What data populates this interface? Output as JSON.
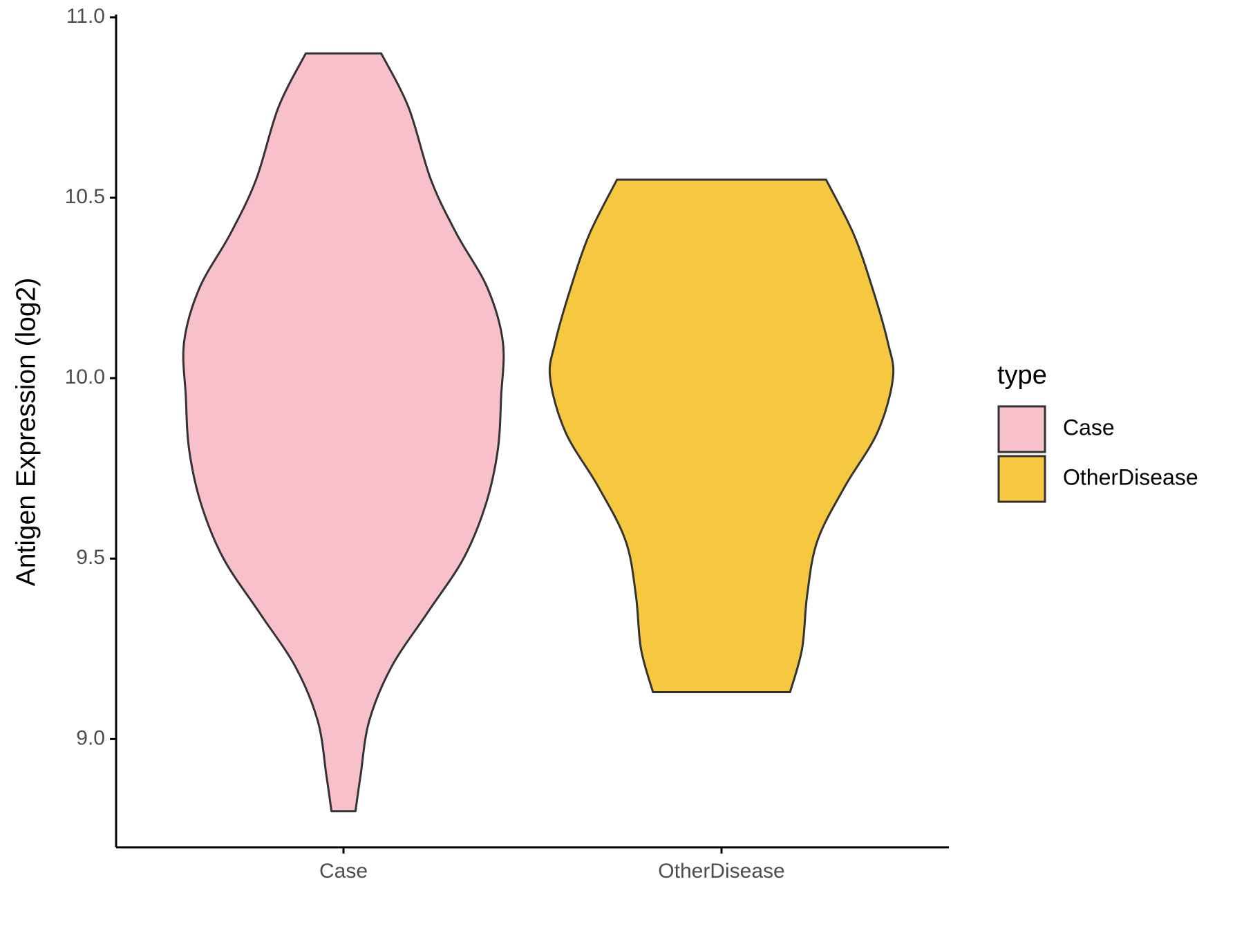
{
  "chart_data": {
    "type": "violin",
    "ylabel": "Antigen Expression (log2)",
    "categories": [
      "Case",
      "OtherDisease"
    ],
    "legend_title": "type",
    "legend": "right",
    "ylim": [
      8.7,
      11.0
    ],
    "yticks": [
      {
        "value": 9.0,
        "label": "9.0"
      },
      {
        "value": 9.5,
        "label": "9.5"
      },
      {
        "value": 10.0,
        "label": "10.0"
      },
      {
        "value": 10.5,
        "label": "10.5"
      },
      {
        "value": 11.0,
        "label": "11.0"
      }
    ],
    "series": [
      {
        "name": "Case",
        "color": "#F7C0CB",
        "y": [
          10.9,
          10.75,
          10.55,
          10.4,
          10.25,
          10.1,
          9.95,
          9.8,
          9.65,
          9.5,
          9.35,
          9.2,
          9.05,
          8.9,
          8.8
        ],
        "density": [
          0.22,
          0.38,
          0.51,
          0.66,
          0.84,
          0.93,
          0.92,
          0.9,
          0.83,
          0.7,
          0.49,
          0.28,
          0.15,
          0.1,
          0.07
        ]
      },
      {
        "name": "OtherDisease",
        "color": "#F5C83F",
        "y": [
          10.55,
          10.4,
          10.25,
          10.1,
          10.0,
          9.85,
          9.7,
          9.55,
          9.4,
          9.25,
          9.13
        ],
        "density": [
          0.61,
          0.77,
          0.88,
          0.97,
          1.0,
          0.91,
          0.72,
          0.56,
          0.5,
          0.47,
          0.4
        ]
      }
    ]
  }
}
